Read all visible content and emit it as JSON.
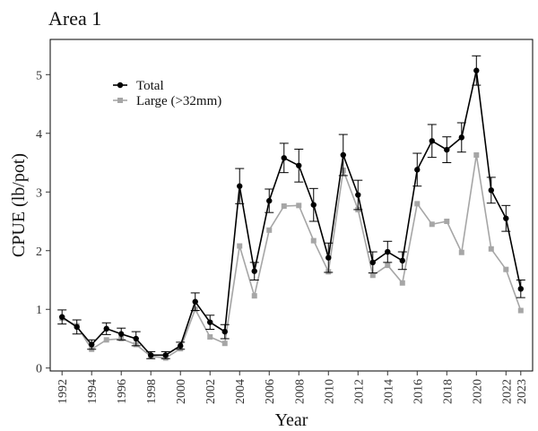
{
  "chart_data": {
    "type": "line",
    "title": "Area 1",
    "xlabel": "Year",
    "ylabel": "CPUE (lb/pot)",
    "xlim": [
      1991.2,
      2023.8
    ],
    "ylim": [
      -0.05,
      5.6
    ],
    "x_ticks": [
      1992,
      1994,
      1996,
      1998,
      2000,
      2002,
      2004,
      2006,
      2008,
      2010,
      2012,
      2014,
      2016,
      2018,
      2020,
      2022,
      2023
    ],
    "y_ticks": [
      0,
      1,
      2,
      3,
      4,
      5
    ],
    "grid": false,
    "legend_position": "top-left",
    "x": [
      1992,
      1993,
      1994,
      1995,
      1996,
      1997,
      1998,
      1999,
      2000,
      2001,
      2002,
      2003,
      2004,
      2005,
      2006,
      2007,
      2008,
      2009,
      2010,
      2011,
      2012,
      2013,
      2014,
      2015,
      2016,
      2017,
      2018,
      2019,
      2020,
      2021,
      2022,
      2023
    ],
    "series": [
      {
        "name": "Total",
        "color": "#000000",
        "marker": "circle",
        "values": [
          0.87,
          0.7,
          0.4,
          0.67,
          0.58,
          0.5,
          0.22,
          0.22,
          0.38,
          1.13,
          0.78,
          0.62,
          3.1,
          1.65,
          2.85,
          3.58,
          3.45,
          2.78,
          1.88,
          3.63,
          2.95,
          1.8,
          1.98,
          1.83,
          3.38,
          3.87,
          3.72,
          3.93,
          5.07,
          3.03,
          2.55,
          1.35
        ],
        "error": [
          0.12,
          0.12,
          0.08,
          0.1,
          0.1,
          0.12,
          0.06,
          0.06,
          0.06,
          0.15,
          0.12,
          0.12,
          0.3,
          0.15,
          0.2,
          0.25,
          0.28,
          0.28,
          0.25,
          0.35,
          0.25,
          0.18,
          0.18,
          0.15,
          0.28,
          0.28,
          0.22,
          0.25,
          0.25,
          0.22,
          0.22,
          0.15
        ]
      },
      {
        "name": "Large (>32mm)",
        "color": "#a6a6a6",
        "marker": "square",
        "values": [
          0.85,
          0.72,
          0.32,
          0.48,
          0.5,
          0.4,
          0.2,
          0.17,
          0.33,
          1.0,
          0.53,
          0.42,
          2.08,
          1.23,
          2.35,
          2.76,
          2.77,
          2.17,
          1.64,
          3.37,
          2.7,
          1.58,
          1.75,
          1.45,
          2.8,
          2.45,
          2.5,
          1.97,
          3.63,
          2.03,
          1.68,
          0.98
        ]
      }
    ]
  }
}
